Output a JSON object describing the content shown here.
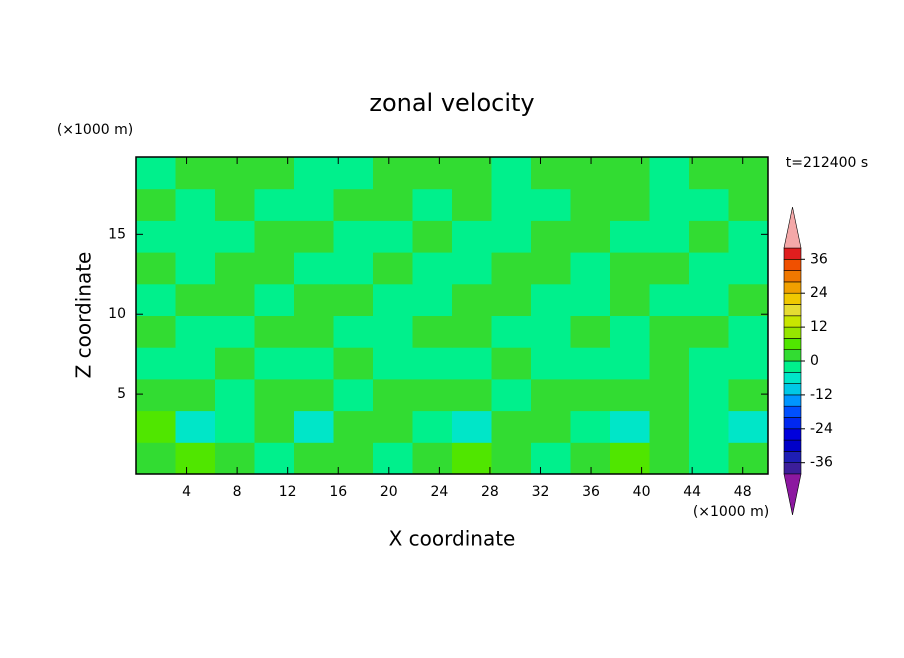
{
  "chart_data": {
    "type": "contour",
    "title": "zonal velocity",
    "xlabel": "X coordinate",
    "ylabel": "Z coordinate",
    "x_unit": "(×1000 m)",
    "y_unit": "(×1000 m)",
    "time_label": "t=212400 s",
    "xlim": [
      0,
      50
    ],
    "ylim": [
      0,
      19.84
    ],
    "xticks": [
      4,
      8,
      12,
      16,
      20,
      24,
      28,
      32,
      36,
      40,
      44,
      48
    ],
    "yticks": [
      5,
      10,
      15
    ],
    "field": [
      [
        2,
        6,
        2,
        -2,
        2,
        2,
        -2,
        2,
        6,
        2,
        -2,
        2,
        6,
        2,
        -2,
        2
      ],
      [
        6,
        -6,
        -2,
        2,
        -6,
        2,
        2,
        -2,
        -6,
        2,
        2,
        -2,
        -6,
        2,
        -2,
        -6
      ],
      [
        2,
        2,
        -2,
        2,
        2,
        -2,
        2,
        2,
        2,
        -2,
        2,
        2,
        2,
        2,
        -2,
        2
      ],
      [
        -2,
        -2,
        2,
        -2,
        -2,
        2,
        -2,
        -2,
        -2,
        2,
        -2,
        -2,
        -2,
        2,
        -2,
        -2
      ],
      [
        2,
        -2,
        -2,
        2,
        2,
        -2,
        -2,
        2,
        2,
        -2,
        -2,
        2,
        -2,
        2,
        2,
        -2
      ],
      [
        -2,
        2,
        2,
        -2,
        2,
        2,
        -2,
        -2,
        2,
        2,
        -2,
        -2,
        2,
        -2,
        -2,
        2
      ],
      [
        2,
        -2,
        2,
        2,
        -2,
        -2,
        2,
        -2,
        -2,
        2,
        2,
        -2,
        2,
        2,
        -2,
        -2
      ],
      [
        -2,
        -2,
        -2,
        2,
        2,
        -2,
        -2,
        2,
        -2,
        -2,
        2,
        2,
        -2,
        -2,
        2,
        -2
      ],
      [
        2,
        -2,
        2,
        -2,
        -2,
        2,
        2,
        -2,
        2,
        -2,
        -2,
        2,
        2,
        -2,
        -2,
        2
      ],
      [
        -2,
        2,
        2,
        2,
        -2,
        -2,
        2,
        2,
        2,
        -2,
        2,
        2,
        2,
        -2,
        2,
        2
      ]
    ],
    "levels": [
      -40,
      -36,
      -32,
      -28,
      -24,
      -20,
      -16,
      -12,
      -8,
      -4,
      0,
      4,
      8,
      12,
      16,
      20,
      24,
      28,
      32,
      36,
      40
    ],
    "colors": [
      "#8c18a0",
      "#3c1e9a",
      "#1e1eb4",
      "#0000c8",
      "#0000dc",
      "#0028f0",
      "#0050ff",
      "#0096ff",
      "#00c8e6",
      "#00e6c8",
      "#00f08c",
      "#32dc32",
      "#50e600",
      "#96e600",
      "#c8e600",
      "#e6dc32",
      "#f0c800",
      "#f0a000",
      "#f07800",
      "#f05000",
      "#e01e1e",
      "#f4a8a8"
    ],
    "colorbar_ticks": [
      -36,
      -24,
      -12,
      0,
      12,
      24,
      36
    ]
  }
}
